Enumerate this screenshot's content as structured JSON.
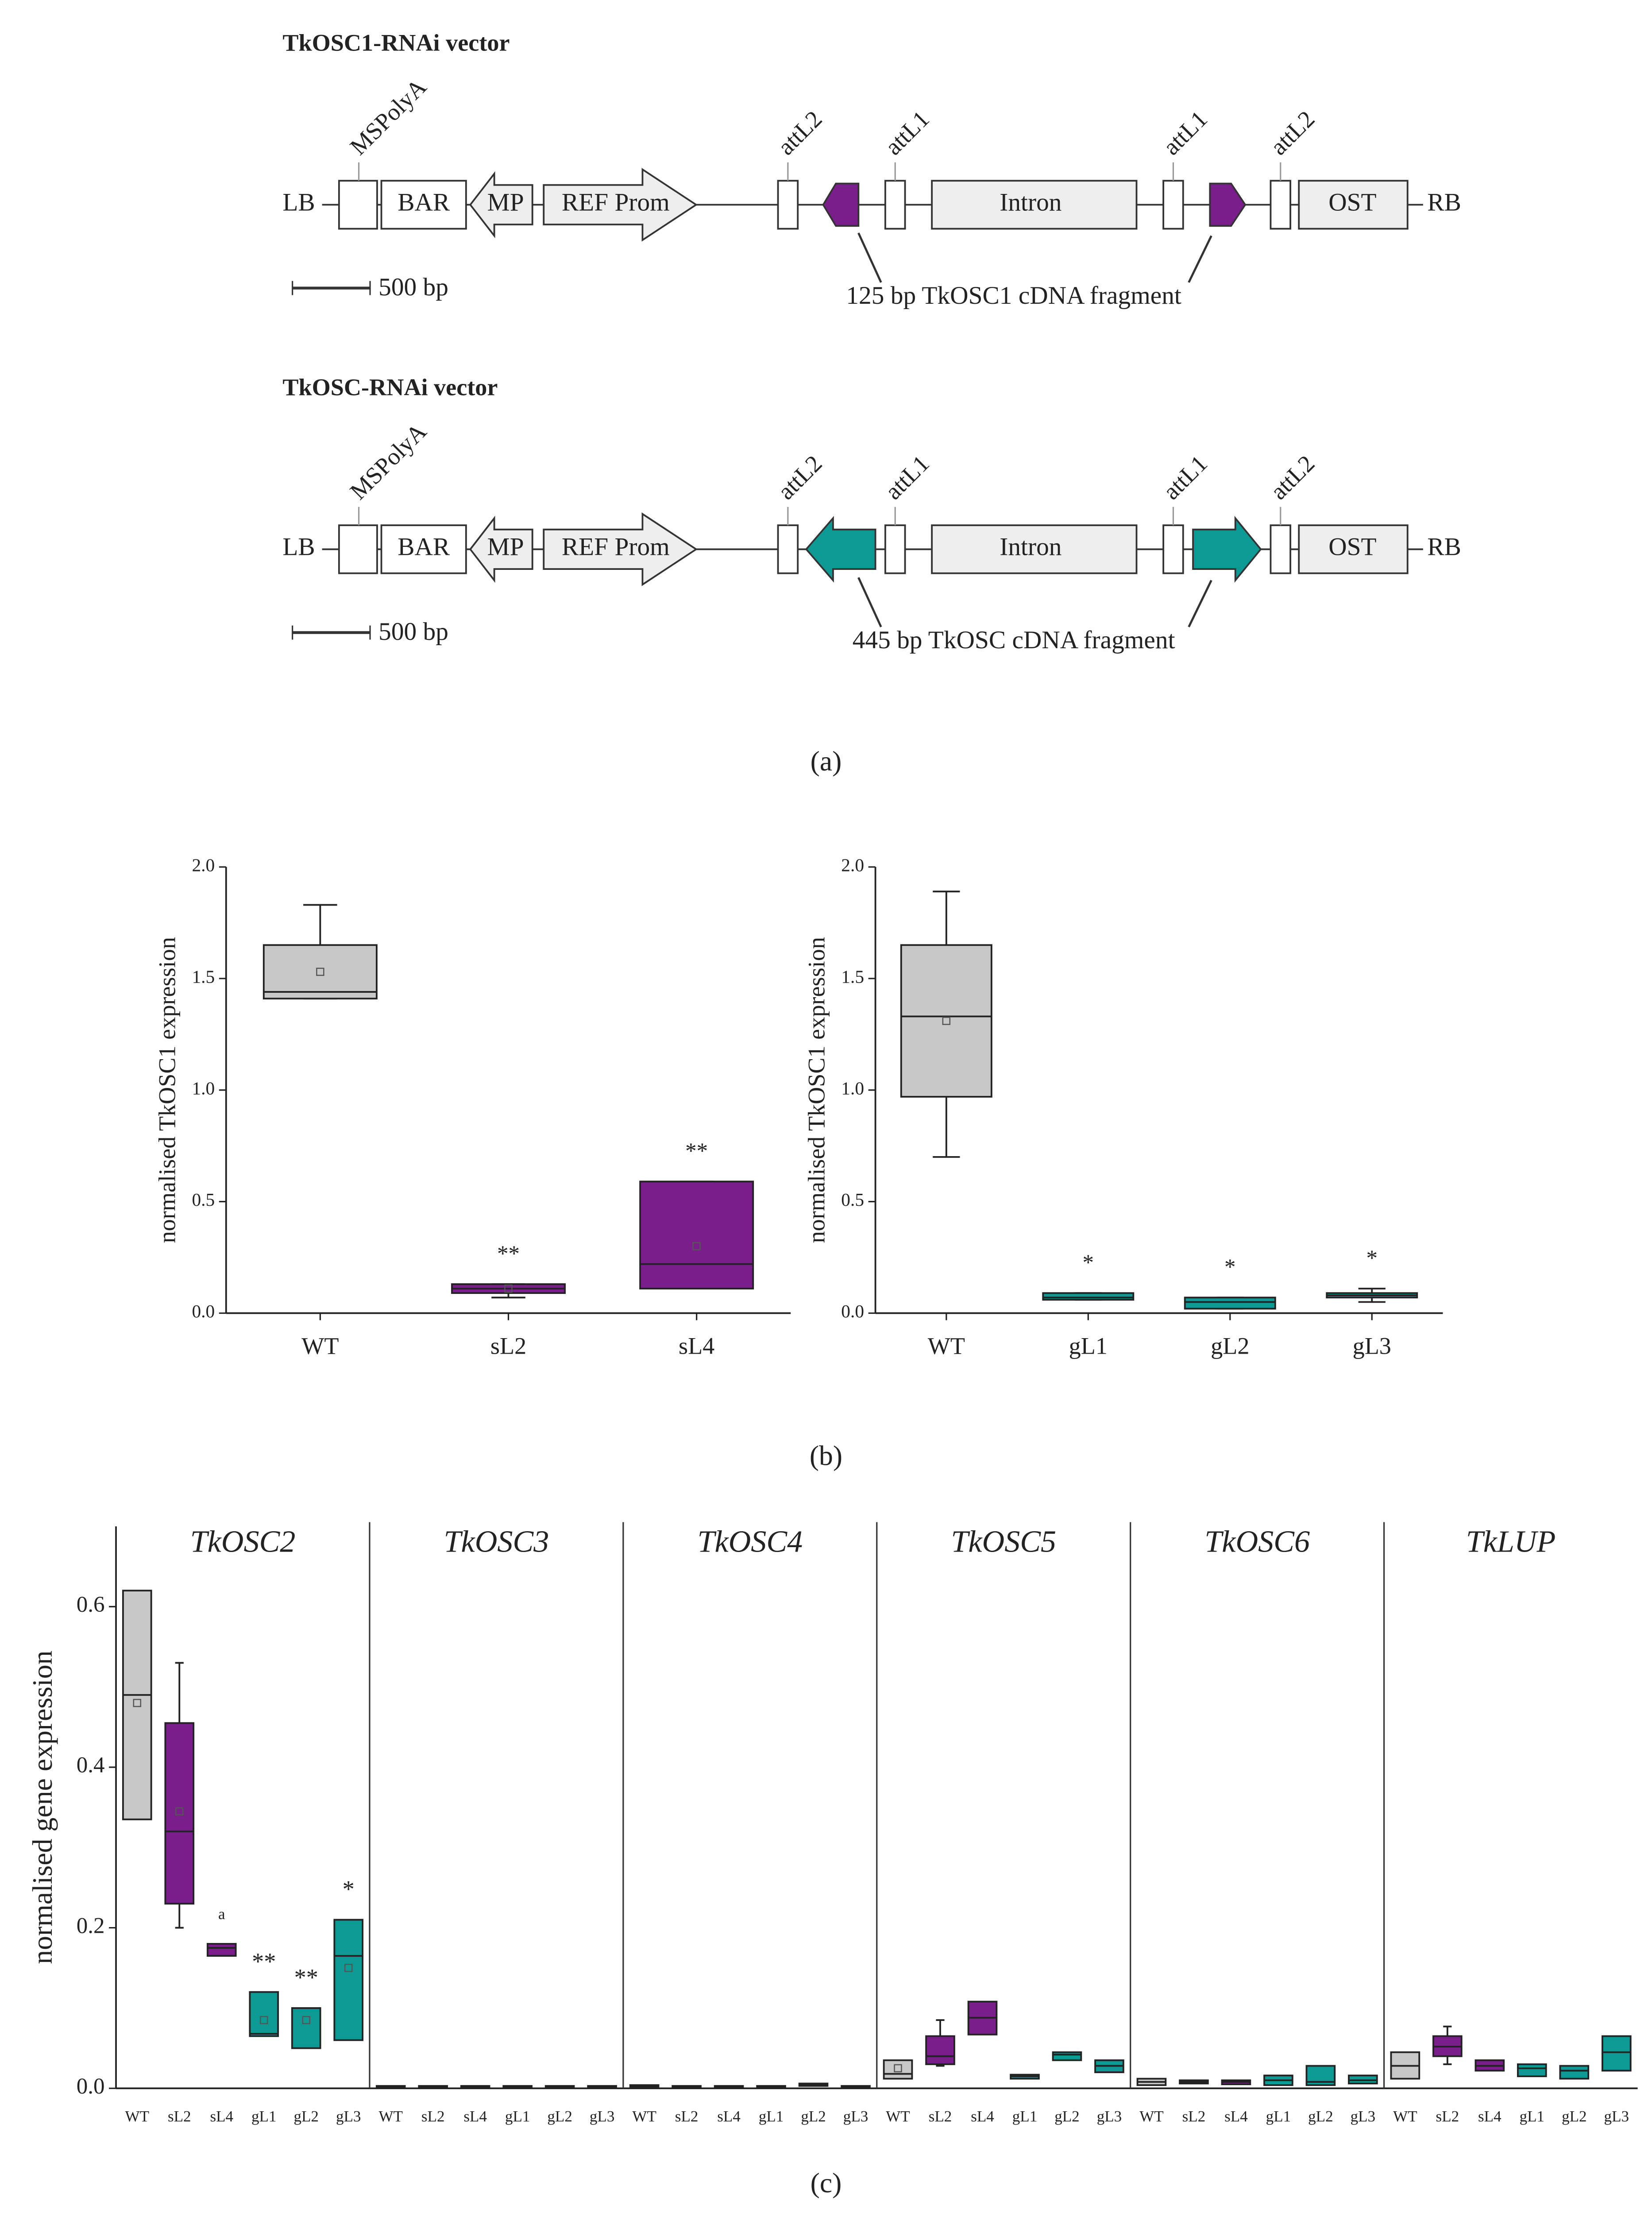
{
  "panel_labels": [
    "(a)",
    "(b)",
    "(c)"
  ],
  "diagram": {
    "vectors": [
      {
        "title": "TkOSC1-RNAi vector",
        "lb": "LB",
        "rb": "RB",
        "polya": "MSPolyA",
        "bar": "BAR",
        "mp": "MP",
        "promoter": "REF Prom",
        "intron": "Intron",
        "ost": "OST",
        "att": [
          "attL2",
          "attL1",
          "attL1",
          "attL2"
        ],
        "fragment": "125 bp TkOSC1 cDNA fragment",
        "scale": "500 bp",
        "color": "#7a1e8c"
      },
      {
        "title": "TkOSC-RNAi vector",
        "lb": "LB",
        "rb": "RB",
        "polya": "MSPolyA",
        "bar": "BAR",
        "mp": "MP",
        "promoter": "REF Prom",
        "intron": "Intron",
        "ost": "OST",
        "att": [
          "attL2",
          "attL1",
          "attL1",
          "attL2"
        ],
        "fragment": "445 bp TkOSC cDNA fragment",
        "scale": "500 bp",
        "color": "#0e9a94"
      }
    ]
  },
  "chart_data": [
    {
      "type": "box",
      "ylabel": "normalised TkOSC1 expression",
      "ylim": [
        0,
        2
      ],
      "yticks": [
        {
          "value": 0,
          "label": "0.0"
        },
        {
          "value": 0.5,
          "label": "0.5"
        },
        {
          "value": 1,
          "label": "1.0"
        },
        {
          "value": 1.5,
          "label": "1.5"
        },
        {
          "value": 2,
          "label": "2.0"
        }
      ],
      "categories": [
        "WT",
        "sL2",
        "sL4"
      ],
      "colors": [
        "#c8c8c8",
        "#7a1e8c",
        "#7a1e8c"
      ],
      "boxes": [
        {
          "min": 1.41,
          "q1": 1.41,
          "median": 1.44,
          "q3": 1.65,
          "max": 1.83,
          "mean": 1.53
        },
        {
          "min": 0.07,
          "q1": 0.09,
          "median": 0.11,
          "q3": 0.13,
          "max": 0.13,
          "mean": 0.11,
          "annotation": "**"
        },
        {
          "min": 0.11,
          "q1": 0.11,
          "median": 0.22,
          "q3": 0.59,
          "max": 0.59,
          "mean": 0.3,
          "annotation": "**"
        }
      ]
    },
    {
      "type": "box",
      "ylabel": "normalised TkOSC1 expression",
      "ylim": [
        0,
        2
      ],
      "yticks": [
        {
          "value": 0,
          "label": "0.0"
        },
        {
          "value": 0.5,
          "label": "0.5"
        },
        {
          "value": 1,
          "label": "1.0"
        },
        {
          "value": 1.5,
          "label": "1.5"
        },
        {
          "value": 2,
          "label": "2.0"
        }
      ],
      "categories": [
        "WT",
        "gL1",
        "gL2",
        "gL3"
      ],
      "colors": [
        "#c8c8c8",
        "#0e9a94",
        "#0e9a94",
        "#0e9a94"
      ],
      "boxes": [
        {
          "min": 0.7,
          "q1": 0.97,
          "median": 1.33,
          "q3": 1.65,
          "max": 1.89,
          "mean": 1.31
        },
        {
          "min": 0.06,
          "q1": 0.06,
          "median": 0.07,
          "q3": 0.09,
          "max": 0.09,
          "annotation": "*"
        },
        {
          "min": 0.02,
          "q1": 0.02,
          "median": 0.05,
          "q3": 0.07,
          "max": 0.07,
          "annotation": "*"
        },
        {
          "min": 0.05,
          "q1": 0.07,
          "median": 0.08,
          "q3": 0.09,
          "max": 0.11,
          "annotation": "*"
        }
      ]
    },
    {
      "type": "grouped-box",
      "ylabel": "normalised gene expression",
      "ylim": [
        0,
        0.7
      ],
      "yticks": [
        {
          "value": 0,
          "label": "0.0"
        },
        {
          "value": 0.2,
          "label": "0.2"
        },
        {
          "value": 0.4,
          "label": "0.4"
        },
        {
          "value": 0.6,
          "label": "0.6"
        }
      ],
      "colors": [
        "#c8c8c8",
        "#7a1e8c",
        "#7a1e8c",
        "#0e9a94",
        "#0e9a94",
        "#0e9a94"
      ],
      "groups": [
        {
          "title": "TkOSC2",
          "categories": [
            "WT",
            "sL2",
            "sL4",
            "gL1",
            "gL2",
            "gL3"
          ],
          "boxes": [
            {
              "q1": 0.335,
              "median": 0.49,
              "q3": 0.62,
              "mean": 0.48
            },
            {
              "min": 0.2,
              "q1": 0.23,
              "median": 0.32,
              "q3": 0.455,
              "max": 0.53,
              "mean": 0.345
            },
            {
              "q1": 0.165,
              "median": 0.175,
              "q3": 0.18,
              "annotation": "a"
            },
            {
              "q1": 0.065,
              "median": 0.068,
              "q3": 0.12,
              "mean": 0.085,
              "annotation": "**"
            },
            {
              "q1": 0.05,
              "median": 0.1,
              "q3": 0.1,
              "mean": 0.085,
              "annotation": "**"
            },
            {
              "q1": 0.06,
              "median": 0.165,
              "q3": 0.21,
              "mean": 0.15,
              "annotation": "*"
            }
          ]
        },
        {
          "title": "TkOSC3",
          "categories": [
            "WT",
            "sL2",
            "sL4",
            "gL1",
            "gL2",
            "gL3"
          ],
          "boxes": [
            {
              "q1": 0.001,
              "median": 0.002,
              "q3": 0.003
            },
            {
              "q1": 0.001,
              "median": 0.002,
              "q3": 0.003
            },
            {
              "q1": 0.001,
              "median": 0.002,
              "q3": 0.003
            },
            {
              "q1": 0.001,
              "median": 0.002,
              "q3": 0.003
            },
            {
              "q1": 0.001,
              "median": 0.002,
              "q3": 0.003
            },
            {
              "q1": 0.001,
              "median": 0.002,
              "q3": 0.003
            }
          ]
        },
        {
          "title": "TkOSC4",
          "categories": [
            "WT",
            "sL2",
            "sL4",
            "gL1",
            "gL2",
            "gL3"
          ],
          "boxes": [
            {
              "q1": 0.002,
              "median": 0.003,
              "q3": 0.004
            },
            {
              "q1": 0.001,
              "median": 0.002,
              "q3": 0.003
            },
            {
              "q1": 0.001,
              "median": 0.002,
              "q3": 0.003
            },
            {
              "q1": 0.001,
              "median": 0.002,
              "q3": 0.003
            },
            {
              "q1": 0.003,
              "median": 0.005,
              "q3": 0.006
            },
            {
              "q1": 0.001,
              "median": 0.002,
              "q3": 0.003
            }
          ]
        },
        {
          "title": "TkOSC5",
          "categories": [
            "WT",
            "sL2",
            "sL4",
            "gL1",
            "gL2",
            "gL3"
          ],
          "boxes": [
            {
              "q1": 0.012,
              "median": 0.018,
              "q3": 0.035,
              "mean": 0.025
            },
            {
              "min": 0.028,
              "q1": 0.03,
              "median": 0.04,
              "q3": 0.065,
              "max": 0.085
            },
            {
              "q1": 0.067,
              "median": 0.088,
              "q3": 0.108
            },
            {
              "q1": 0.012,
              "median": 0.015,
              "q3": 0.017
            },
            {
              "q1": 0.035,
              "median": 0.042,
              "q3": 0.045
            },
            {
              "q1": 0.02,
              "median": 0.028,
              "q3": 0.035
            }
          ]
        },
        {
          "title": "TkOSC6",
          "categories": [
            "WT",
            "sL2",
            "sL4",
            "gL1",
            "gL2",
            "gL3"
          ],
          "boxes": [
            {
              "q1": 0.004,
              "median": 0.008,
              "q3": 0.012
            },
            {
              "q1": 0.006,
              "median": 0.008,
              "q3": 0.01
            },
            {
              "q1": 0.005,
              "median": 0.008,
              "q3": 0.01
            },
            {
              "q1": 0.004,
              "median": 0.01,
              "q3": 0.016
            },
            {
              "q1": 0.004,
              "median": 0.008,
              "q3": 0.028
            },
            {
              "q1": 0.006,
              "median": 0.01,
              "q3": 0.016
            }
          ]
        },
        {
          "title": "TkLUP",
          "categories": [
            "WT",
            "sL2",
            "sL4",
            "gL1",
            "gL2",
            "gL3"
          ],
          "boxes": [
            {
              "q1": 0.012,
              "median": 0.028,
              "q3": 0.045
            },
            {
              "min": 0.03,
              "q1": 0.04,
              "median": 0.052,
              "q3": 0.065,
              "max": 0.077
            },
            {
              "q1": 0.022,
              "median": 0.028,
              "q3": 0.035
            },
            {
              "q1": 0.015,
              "median": 0.025,
              "q3": 0.03
            },
            {
              "q1": 0.012,
              "median": 0.022,
              "q3": 0.028
            },
            {
              "q1": 0.022,
              "median": 0.045,
              "q3": 0.065
            }
          ]
        }
      ]
    }
  ]
}
